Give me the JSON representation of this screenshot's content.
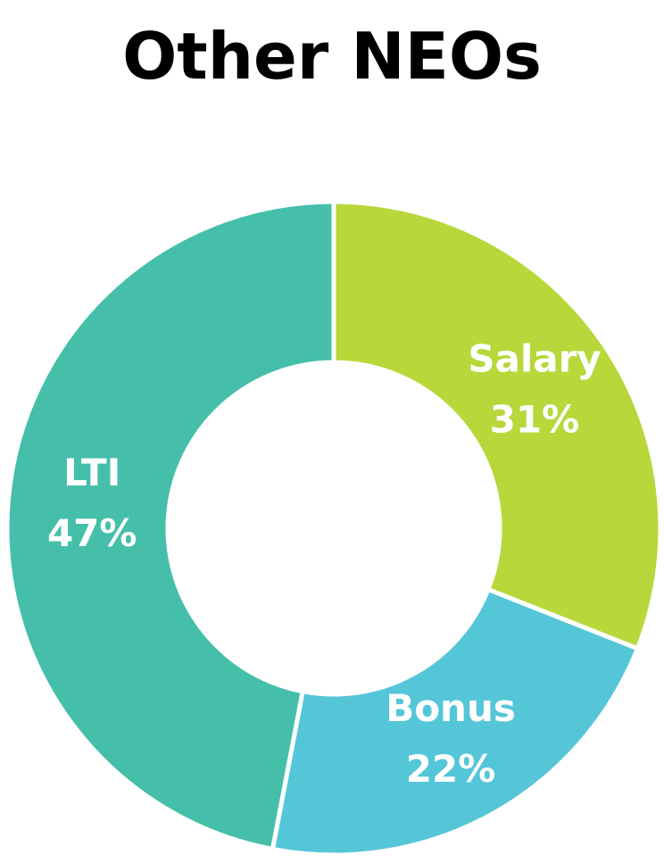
{
  "chart_data": {
    "type": "donut",
    "title": "Other NEOs",
    "categories": [
      "Salary",
      "Bonus",
      "LTI"
    ],
    "values": [
      31,
      22,
      47
    ],
    "value_labels": [
      "31%",
      "22%",
      "47%"
    ],
    "colors": [
      "#b8d73b",
      "#55c6d8",
      "#45bfaa"
    ]
  }
}
